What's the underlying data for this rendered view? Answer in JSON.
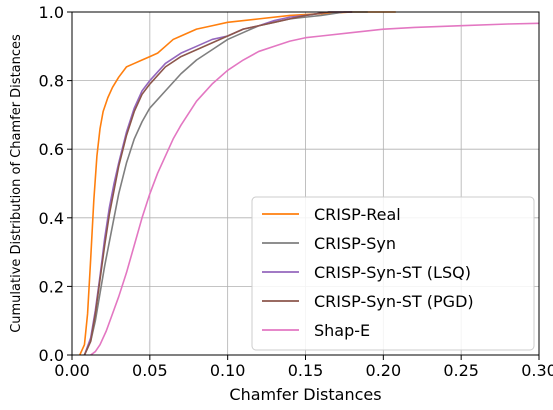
{
  "chart_data": {
    "type": "line",
    "title": "",
    "xlabel": "Chamfer Distances",
    "ylabel": "Cumulative Distribution of Chamfer Distances",
    "xlim": [
      0.0,
      0.3
    ],
    "ylim": [
      0.0,
      1.0
    ],
    "xticks": [
      "0.00",
      "0.05",
      "0.10",
      "0.15",
      "0.20",
      "0.25",
      "0.30"
    ],
    "yticks": [
      "0.0",
      "0.2",
      "0.4",
      "0.6",
      "0.8",
      "1.0"
    ],
    "grid": true,
    "legend_position": "lower-right",
    "series": [
      {
        "name": "CRISP-Real",
        "color": "#ff7f0e",
        "points": [
          [
            0.005,
            0.0
          ],
          [
            0.008,
            0.03
          ],
          [
            0.01,
            0.12
          ],
          [
            0.012,
            0.28
          ],
          [
            0.014,
            0.45
          ],
          [
            0.016,
            0.58
          ],
          [
            0.018,
            0.66
          ],
          [
            0.02,
            0.71
          ],
          [
            0.023,
            0.75
          ],
          [
            0.026,
            0.78
          ],
          [
            0.03,
            0.81
          ],
          [
            0.035,
            0.84
          ],
          [
            0.04,
            0.85
          ],
          [
            0.045,
            0.86
          ],
          [
            0.05,
            0.87
          ],
          [
            0.055,
            0.88
          ],
          [
            0.06,
            0.9
          ],
          [
            0.065,
            0.92
          ],
          [
            0.07,
            0.93
          ],
          [
            0.08,
            0.95
          ],
          [
            0.09,
            0.96
          ],
          [
            0.1,
            0.97
          ],
          [
            0.12,
            0.98
          ],
          [
            0.14,
            0.99
          ],
          [
            0.16,
            0.995
          ],
          [
            0.18,
            1.0
          ],
          [
            0.208,
            1.0
          ]
        ]
      },
      {
        "name": "CRISP-Syn",
        "color": "#7f7f7f",
        "points": [
          [
            0.008,
            0.0
          ],
          [
            0.012,
            0.04
          ],
          [
            0.015,
            0.1
          ],
          [
            0.018,
            0.18
          ],
          [
            0.021,
            0.26
          ],
          [
            0.024,
            0.33
          ],
          [
            0.027,
            0.4
          ],
          [
            0.03,
            0.47
          ],
          [
            0.035,
            0.56
          ],
          [
            0.04,
            0.63
          ],
          [
            0.045,
            0.68
          ],
          [
            0.05,
            0.72
          ],
          [
            0.06,
            0.77
          ],
          [
            0.07,
            0.82
          ],
          [
            0.08,
            0.86
          ],
          [
            0.09,
            0.89
          ],
          [
            0.1,
            0.92
          ],
          [
            0.11,
            0.94
          ],
          [
            0.12,
            0.96
          ],
          [
            0.13,
            0.97
          ],
          [
            0.14,
            0.98
          ],
          [
            0.15,
            0.985
          ],
          [
            0.16,
            0.99
          ],
          [
            0.175,
            1.0
          ],
          [
            0.19,
            1.0
          ]
        ]
      },
      {
        "name": "CRISP-Syn-ST (LSQ)",
        "color": "#9467bd",
        "points": [
          [
            0.008,
            0.0
          ],
          [
            0.012,
            0.05
          ],
          [
            0.015,
            0.13
          ],
          [
            0.018,
            0.23
          ],
          [
            0.021,
            0.34
          ],
          [
            0.024,
            0.43
          ],
          [
            0.027,
            0.5
          ],
          [
            0.03,
            0.56
          ],
          [
            0.035,
            0.65
          ],
          [
            0.04,
            0.72
          ],
          [
            0.045,
            0.77
          ],
          [
            0.05,
            0.8
          ],
          [
            0.06,
            0.85
          ],
          [
            0.07,
            0.88
          ],
          [
            0.08,
            0.9
          ],
          [
            0.09,
            0.92
          ],
          [
            0.1,
            0.93
          ],
          [
            0.11,
            0.95
          ],
          [
            0.12,
            0.96
          ],
          [
            0.13,
            0.975
          ],
          [
            0.14,
            0.985
          ],
          [
            0.15,
            0.99
          ],
          [
            0.165,
            1.0
          ],
          [
            0.18,
            1.0
          ]
        ]
      },
      {
        "name": "CRISP-Syn-ST (PGD)",
        "color": "#8c564b",
        "points": [
          [
            0.008,
            0.0
          ],
          [
            0.012,
            0.04
          ],
          [
            0.015,
            0.12
          ],
          [
            0.018,
            0.22
          ],
          [
            0.021,
            0.32
          ],
          [
            0.024,
            0.41
          ],
          [
            0.027,
            0.48
          ],
          [
            0.03,
            0.55
          ],
          [
            0.035,
            0.64
          ],
          [
            0.04,
            0.71
          ],
          [
            0.045,
            0.76
          ],
          [
            0.05,
            0.79
          ],
          [
            0.06,
            0.84
          ],
          [
            0.07,
            0.87
          ],
          [
            0.08,
            0.89
          ],
          [
            0.09,
            0.91
          ],
          [
            0.1,
            0.93
          ],
          [
            0.11,
            0.95
          ],
          [
            0.12,
            0.96
          ],
          [
            0.13,
            0.97
          ],
          [
            0.14,
            0.98
          ],
          [
            0.15,
            0.99
          ],
          [
            0.165,
            1.0
          ],
          [
            0.18,
            1.0
          ]
        ]
      },
      {
        "name": "Shap-E",
        "color": "#e377c2",
        "points": [
          [
            0.012,
            0.0
          ],
          [
            0.015,
            0.01
          ],
          [
            0.018,
            0.03
          ],
          [
            0.022,
            0.07
          ],
          [
            0.026,
            0.12
          ],
          [
            0.03,
            0.17
          ],
          [
            0.035,
            0.24
          ],
          [
            0.04,
            0.32
          ],
          [
            0.045,
            0.4
          ],
          [
            0.05,
            0.47
          ],
          [
            0.055,
            0.53
          ],
          [
            0.06,
            0.58
          ],
          [
            0.065,
            0.63
          ],
          [
            0.07,
            0.67
          ],
          [
            0.08,
            0.74
          ],
          [
            0.09,
            0.79
          ],
          [
            0.1,
            0.83
          ],
          [
            0.11,
            0.86
          ],
          [
            0.12,
            0.885
          ],
          [
            0.13,
            0.9
          ],
          [
            0.14,
            0.915
          ],
          [
            0.15,
            0.925
          ],
          [
            0.16,
            0.93
          ],
          [
            0.18,
            0.94
          ],
          [
            0.2,
            0.95
          ],
          [
            0.22,
            0.955
          ],
          [
            0.25,
            0.96
          ],
          [
            0.28,
            0.965
          ],
          [
            0.3,
            0.967
          ]
        ]
      }
    ]
  }
}
